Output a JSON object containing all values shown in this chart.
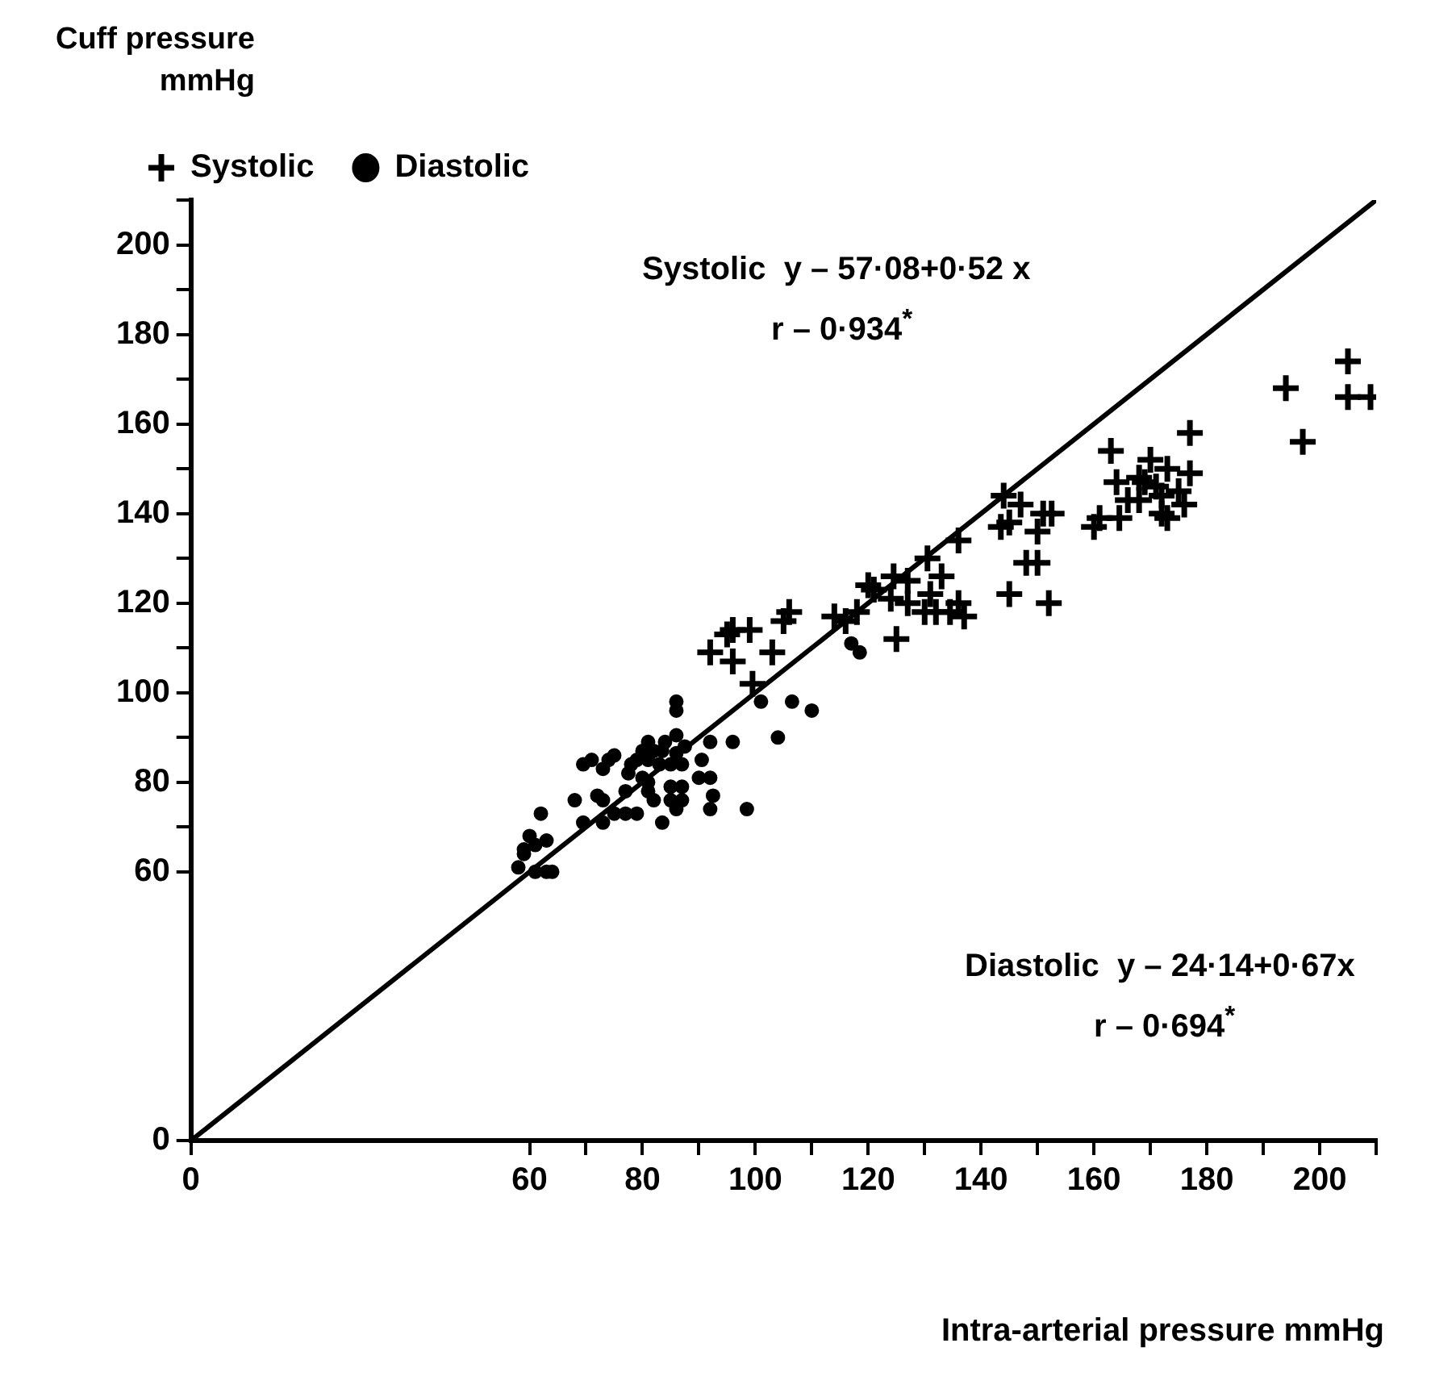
{
  "chart_data": {
    "type": "scatter",
    "xlabel": "Intra-arterial pressure mmHg",
    "ylabel": "Cuff pressure mmHg",
    "xlim": [
      0,
      210
    ],
    "ylim": [
      0,
      210
    ],
    "xticks": [
      0,
      60,
      {
        "value": 70,
        "label": null
      },
      80,
      {
        "value": 90,
        "label": null
      },
      100,
      {
        "value": 110,
        "label": null
      },
      120,
      {
        "value": 130,
        "label": null
      },
      140,
      {
        "value": 150,
        "label": null
      },
      160,
      {
        "value": 170,
        "label": null
      },
      180,
      {
        "value": 190,
        "label": null
      },
      200,
      {
        "value": 210,
        "label": null
      }
    ],
    "yticks": [
      0,
      60,
      {
        "value": 70,
        "label": null
      },
      80,
      {
        "value": 90,
        "label": null
      },
      100,
      {
        "value": 110,
        "label": null
      },
      120,
      {
        "value": 130,
        "label": null
      },
      140,
      {
        "value": 150,
        "label": null
      },
      160,
      {
        "value": 170,
        "label": null
      },
      180,
      {
        "value": 190,
        "label": null
      },
      200,
      {
        "value": 210,
        "label": null
      }
    ],
    "grid": false,
    "legend": "top left",
    "annotations": [
      "Systolic  y – 57·08+0·52 x",
      "r – 0·934$^{*}$",
      "Diastolic  y – 24·14+0·67x",
      "r – 0·694$^{*}$"
    ],
    "series": [
      {
        "name": "Systolic",
        "type": "scatter",
        "marker": "cross",
        "color": "#000000",
        "x": [
          92,
          95,
          96,
          99,
          103,
          105,
          106,
          114,
          116,
          118,
          120,
          121,
          124.5,
          127,
          124,
          127,
          130,
          132,
          134.5,
          136,
          137,
          131,
          133,
          130.5,
          136,
          125,
          96,
          99.5,
          205,
          194,
          205,
          209,
          197,
          177,
          163,
          170,
          173,
          177,
          164,
          168,
          169,
          171,
          175,
          166,
          168,
          172,
          176,
          172,
          173,
          144,
          147,
          151,
          152.5,
          143.5,
          145,
          150,
          160,
          161,
          164.5,
          148,
          150,
          145,
          152
        ],
        "values": [
          109,
          113,
          114,
          114,
          109,
          116,
          118,
          117,
          116,
          118,
          124,
          123,
          126,
          125,
          121,
          120,
          118,
          118,
          118,
          120,
          117,
          122,
          126,
          130,
          134,
          112,
          107,
          102,
          174,
          168,
          166,
          166,
          156,
          158,
          154,
          152,
          150,
          149,
          147,
          148,
          147,
          146,
          145,
          143,
          143,
          144,
          142,
          140,
          139,
          144,
          142,
          140,
          140,
          137,
          138,
          136,
          137,
          139,
          139,
          129,
          129,
          122,
          120
        ]
      },
      {
        "name": "Diastolic",
        "type": "scatter",
        "marker": "circle",
        "color": "#000000",
        "x": [
          58,
          61,
          63,
          64,
          59,
          59,
          60,
          61,
          63,
          62,
          68,
          69.5,
          72,
          73,
          73,
          75,
          77,
          79,
          69.5,
          71,
          73,
          74,
          75,
          77,
          77.5,
          78,
          79,
          80,
          81,
          82,
          83.5,
          84,
          81,
          83,
          80,
          81,
          81,
          82,
          83.5,
          85,
          87,
          85,
          87,
          86,
          85,
          87,
          86,
          86,
          87.5,
          86,
          86,
          90.5,
          90,
          92,
          92.5,
          92,
          92,
          96,
          98.5,
          101,
          104,
          106.5,
          110,
          117,
          118.5
        ],
        "values": [
          61,
          60,
          60,
          60,
          64,
          65,
          68,
          66,
          67,
          73,
          76,
          71,
          77,
          76,
          71,
          73,
          73,
          73,
          84,
          85,
          83,
          85,
          86,
          78,
          82,
          84,
          85,
          87,
          89,
          87,
          87,
          89,
          85,
          84,
          81,
          80,
          78,
          76,
          71,
          79,
          79,
          76,
          76,
          74,
          84,
          84,
          86.5,
          90.5,
          88,
          96,
          98,
          85,
          81,
          81,
          77,
          74,
          89,
          89,
          74,
          98,
          90,
          98,
          96,
          111,
          109
        ]
      },
      {
        "type": "line",
        "marker": "none",
        "line_style": "solid",
        "color": "#000000",
        "x": [
          0,
          210
        ],
        "values": [
          0,
          210
        ]
      }
    ]
  }
}
